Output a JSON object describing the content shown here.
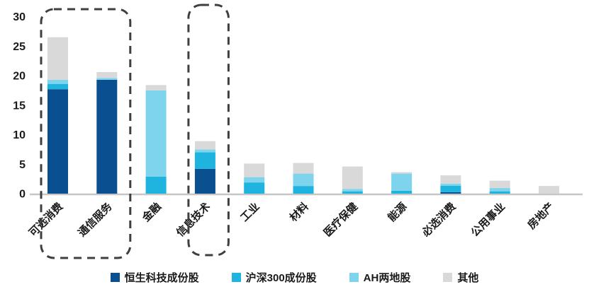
{
  "chart_data": {
    "type": "bar",
    "stacked": true,
    "title": "",
    "xlabel": "",
    "ylabel": "",
    "ylim": [
      0,
      30
    ],
    "yticks": [
      0,
      5,
      10,
      15,
      20,
      25,
      30
    ],
    "grid": false,
    "legend_position": "bottom",
    "categories": [
      "可选消费",
      "通信服务",
      "金融",
      "信息技术",
      "工业",
      "材料",
      "医疗保健",
      "能源",
      "必选消费",
      "公用事业",
      "房地产"
    ],
    "series": [
      {
        "name": "恒生科技成份股",
        "color": "#0A4F8F",
        "values": [
          17.7,
          19.3,
          0,
          4.2,
          0,
          0,
          0,
          0,
          0.25,
          0,
          0
        ]
      },
      {
        "name": "沪深300成份股",
        "color": "#1FB4E0",
        "values": [
          0.9,
          0,
          2.9,
          2.8,
          1.9,
          1.3,
          0.4,
          0.5,
          1.1,
          0.4,
          0
        ]
      },
      {
        "name": "AH两地股",
        "color": "#7DD4EC",
        "values": [
          0.7,
          0.3,
          14.6,
          0.5,
          0.9,
          2.1,
          0.4,
          2.9,
          0.35,
          0.55,
          0
        ]
      },
      {
        "name": "其他",
        "color": "#D9D9D9",
        "values": [
          7.2,
          1.0,
          0.9,
          1.4,
          2.3,
          1.8,
          3.8,
          0.25,
          1.4,
          1.25,
          1.3
        ]
      }
    ],
    "highlight_boxes": [
      {
        "from": "可选消费",
        "to": "通信服务",
        "style": "dashed"
      },
      {
        "from": "信息技术",
        "to": "信息技术",
        "style": "dashed"
      }
    ],
    "axis_color": "#C6C6C6",
    "highlight_box_color": "#3F3F3F"
  }
}
